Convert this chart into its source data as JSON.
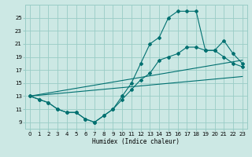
{
  "xlabel": "Humidex (Indice chaleur)",
  "xlim": [
    -0.5,
    23.5
  ],
  "ylim": [
    8.0,
    27.0
  ],
  "xticks": [
    0,
    1,
    2,
    3,
    4,
    5,
    6,
    7,
    8,
    9,
    10,
    11,
    12,
    13,
    14,
    15,
    16,
    17,
    18,
    19,
    20,
    21,
    22,
    23
  ],
  "yticks": [
    9,
    11,
    13,
    15,
    17,
    19,
    21,
    23,
    25
  ],
  "bg_color": "#cce8e4",
  "grid_color": "#99ccc6",
  "line_color": "#007070",
  "line1_y": [
    13,
    12.5,
    12,
    11,
    10.5,
    10.5,
    9.5,
    9,
    10,
    11,
    13,
    15,
    18,
    21,
    22,
    25,
    26,
    26,
    26,
    20,
    20,
    19,
    18,
    17.5
  ],
  "line2_y": [
    13,
    12.5,
    12,
    11,
    10.5,
    10.5,
    9.5,
    9,
    10,
    11,
    12.5,
    14,
    15.5,
    16.5,
    18.5,
    19,
    19.5,
    20.5,
    20.5,
    20,
    20,
    21.5,
    19.5,
    18
  ],
  "line3_y_start": 13,
  "line3_y_end": 16,
  "line4_y_start": 13,
  "line4_y_end": 18.5
}
